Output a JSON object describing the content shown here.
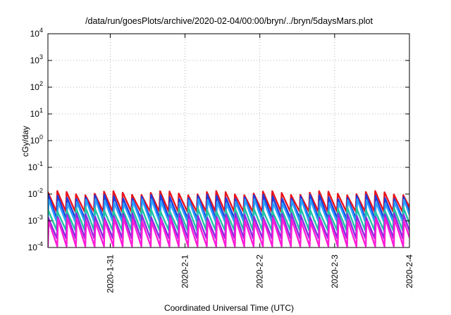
{
  "chart_data": {
    "type": "line",
    "title": "/data/run/goesPlots/archive/2020-02-04/00:00/bryn/../bryn/5daysMars.plot",
    "xlabel": "Coordinated Universal Time (UTC)",
    "ylabel": "cGy/day",
    "x_range": [
      "2020-01-30T04:00",
      "2020-02-04T00:00"
    ],
    "x_ticks": [
      "2020-1-31",
      "2020-2-1",
      "2020-2-2",
      "2020-2-3",
      "2020-2-4"
    ],
    "y_scale": "log",
    "y_range": [
      0.0001,
      10000
    ],
    "y_ticks": [
      {
        "base": "10",
        "exp": "-4",
        "value": 0.0001
      },
      {
        "base": "10",
        "exp": "-3",
        "value": 0.001
      },
      {
        "base": "10",
        "exp": "-2",
        "value": 0.01
      },
      {
        "base": "10",
        "exp": "-1",
        "value": 0.1
      },
      {
        "base": "10",
        "exp": "0",
        "value": 1
      },
      {
        "base": "10",
        "exp": "1",
        "value": 10
      },
      {
        "base": "10",
        "exp": "2",
        "value": 100
      },
      {
        "base": "10",
        "exp": "3",
        "value": 1000
      },
      {
        "base": "10",
        "exp": "4",
        "value": 10000
      }
    ],
    "grid": true,
    "cycle_hours": 3,
    "series": [
      {
        "color": "#e8141c",
        "peak": 0.011,
        "trough": 0.0022
      },
      {
        "color": "#1a3fe0",
        "peak": 0.008,
        "trough": 0.0012
      },
      {
        "color": "#2aa0ff",
        "peak": 0.0055,
        "trough": 0.0008
      },
      {
        "color": "#22c4a4",
        "peak": 0.0028,
        "trough": 0.00045
      },
      {
        "color": "#8a2be2",
        "peak": 0.0016,
        "trough": 0.00022
      },
      {
        "color": "#ff1cd6",
        "peak": 0.0011,
        "trough": 0.00011
      }
    ]
  }
}
